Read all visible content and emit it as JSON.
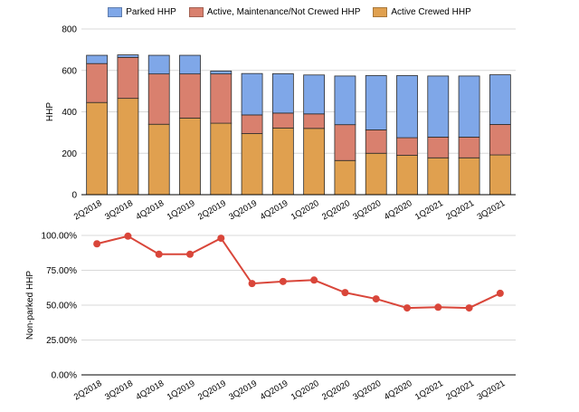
{
  "chart_data": [
    {
      "type": "bar",
      "stacked": true,
      "categories": [
        "2Q2018",
        "3Q2018",
        "4Q2018",
        "1Q2019",
        "2Q2019",
        "3Q2019",
        "4Q2019",
        "1Q2020",
        "2Q2020",
        "3Q2020",
        "4Q2020",
        "1Q2021",
        "2Q2021",
        "3Q2021"
      ],
      "series": [
        {
          "name": "Active Crewed HHP",
          "color": "#E0A04F",
          "values": [
            445,
            465,
            340,
            370,
            345,
            295,
            322,
            320,
            165,
            200,
            190,
            178,
            178,
            192
          ]
        },
        {
          "name": "Active, Maintenance/Not Crewed HHP",
          "color": "#D9806E",
          "values": [
            188,
            198,
            243,
            213,
            238,
            90,
            72,
            70,
            173,
            113,
            85,
            100,
            100,
            147
          ]
        },
        {
          "name": "Parked HHP",
          "color": "#7FA7E8",
          "values": [
            40,
            12,
            90,
            90,
            14,
            200,
            190,
            188,
            235,
            262,
            300,
            295,
            295,
            240
          ]
        }
      ],
      "legend_order": [
        "Parked HHP",
        "Active, Maintenance/Not Crewed HHP",
        "Active Crewed HHP"
      ],
      "xlabel": "",
      "ylabel": "HHP",
      "ylim": [
        0,
        800
      ],
      "yticks": [
        "0",
        "200",
        "400",
        "600",
        "800"
      ],
      "grid": true,
      "legend_position": "top"
    },
    {
      "type": "line",
      "categories": [
        "2Q2018",
        "3Q2018",
        "4Q2018",
        "1Q2019",
        "2Q2019",
        "3Q2019",
        "4Q2019",
        "1Q2020",
        "2Q2020",
        "3Q2020",
        "4Q2020",
        "1Q2021",
        "2Q2021",
        "3Q2021"
      ],
      "series": [
        {
          "color": "#D9463A",
          "values": [
            94,
            99.5,
            86.5,
            86.5,
            98,
            65.5,
            67,
            68,
            59,
            54.5,
            48,
            48.5,
            48,
            58.5
          ]
        }
      ],
      "xlabel": "",
      "ylabel": "Non-parked HHP",
      "ylim": [
        0,
        100
      ],
      "yticks": [
        "0.00%",
        "25.00%",
        "50.00%",
        "75.00%",
        "100.00%"
      ],
      "grid": true
    }
  ]
}
